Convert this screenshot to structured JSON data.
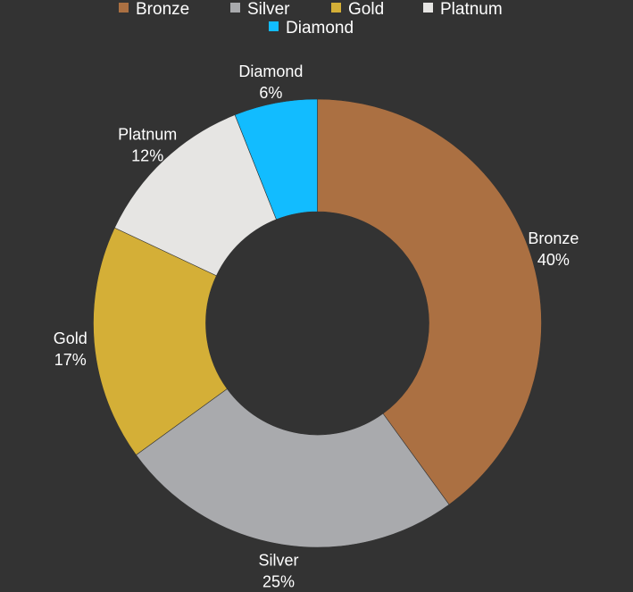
{
  "chart_data": {
    "type": "pie",
    "variant": "donut",
    "categories": [
      "Bronze",
      "Silver",
      "Gold",
      "Platnum",
      "Diamond"
    ],
    "values": [
      40,
      25,
      17,
      12,
      6
    ],
    "value_labels": [
      "40%",
      "25%",
      "17%",
      "12%",
      "6%"
    ],
    "colors": [
      "#ab7042",
      "#a9aaad",
      "#d4af37",
      "#e6e5e3",
      "#12bcff"
    ],
    "legend": {
      "placement": "top",
      "entries": [
        "Bronze",
        "Silver",
        "Gold",
        "Platnum",
        "Diamond"
      ]
    },
    "background": "#333333",
    "text_color": "#ffffff"
  }
}
